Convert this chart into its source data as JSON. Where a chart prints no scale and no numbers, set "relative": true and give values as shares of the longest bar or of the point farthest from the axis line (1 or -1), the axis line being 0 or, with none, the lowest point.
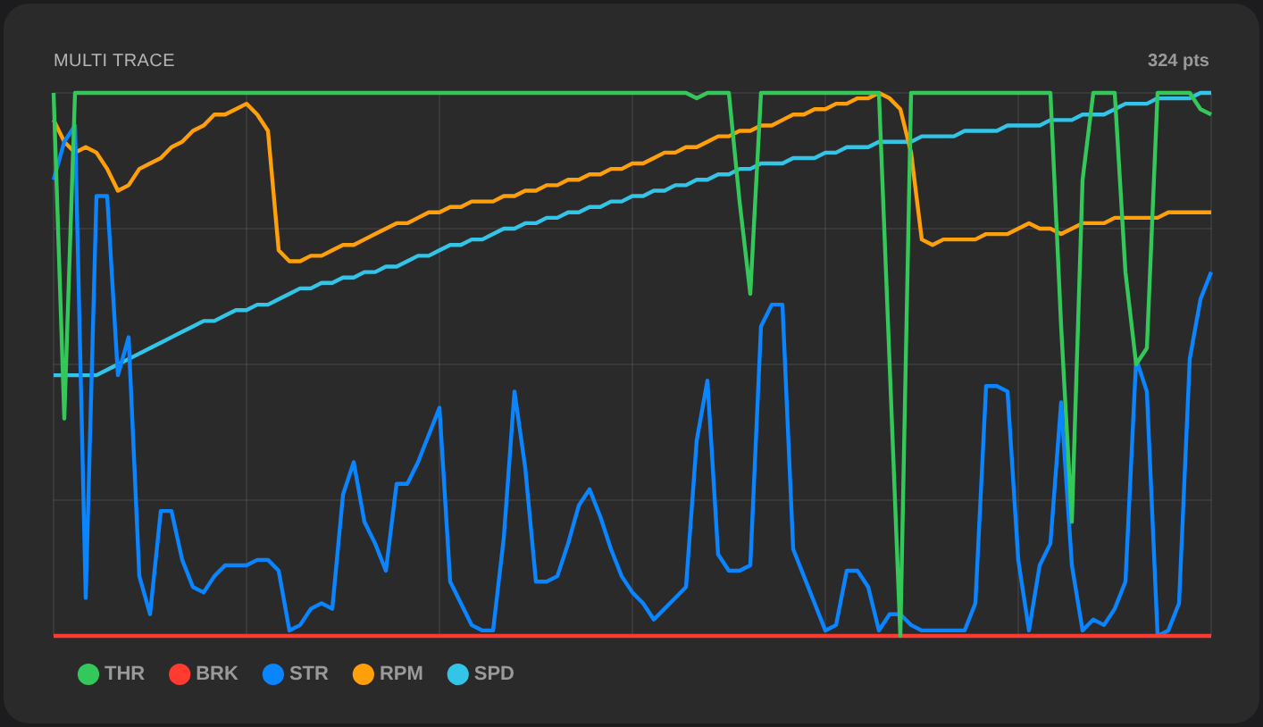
{
  "chart_data": {
    "type": "line",
    "title": "MULTI TRACE",
    "annotations": [
      "324 pts"
    ],
    "relative": true,
    "grid": true,
    "legend": "bottom left",
    "marker": "none",
    "line_style": "solid",
    "categories": [
      null,
      null,
      null,
      null,
      null,
      null,
      null,
      null,
      null,
      null,
      null,
      null,
      null,
      null,
      null,
      null,
      null,
      null,
      null,
      null,
      null,
      null,
      null,
      null,
      null,
      null,
      null,
      null,
      null,
      null,
      null,
      null,
      null,
      null,
      null,
      null,
      null,
      null,
      null,
      null,
      null,
      null,
      null,
      null,
      null,
      null,
      null,
      null,
      null,
      null,
      null,
      null,
      null,
      null,
      null,
      null,
      null,
      null,
      null,
      null,
      null,
      null,
      null,
      null,
      null,
      null,
      null,
      null,
      null,
      null,
      null,
      null,
      null,
      null,
      null,
      null,
      null,
      null,
      null,
      null,
      null,
      null,
      null,
      null,
      null,
      null,
      null,
      null,
      null,
      null,
      null,
      null,
      null,
      null,
      null,
      null,
      null,
      null,
      null,
      null,
      null,
      null,
      null,
      null,
      null,
      null,
      null,
      null,
      null
    ],
    "series": [
      {
        "name": "THR",
        "color": "#34c759",
        "values": [
          1,
          0.4,
          1,
          1,
          1,
          1,
          1,
          1,
          1,
          1,
          1,
          1,
          1,
          1,
          1,
          1,
          1,
          1,
          1,
          1,
          1,
          1,
          1,
          1,
          1,
          1,
          1,
          1,
          1,
          1,
          1,
          1,
          1,
          1,
          1,
          1,
          1,
          1,
          1,
          1,
          1,
          1,
          1,
          1,
          1,
          1,
          1,
          1,
          1,
          1,
          1,
          1,
          1,
          1,
          1,
          1,
          1,
          1,
          1,
          1,
          0.99,
          1,
          1,
          1,
          0.8,
          0.63,
          1,
          1,
          1,
          1,
          1,
          1,
          1,
          1,
          1,
          1,
          1,
          1,
          0.5,
          0,
          1,
          1,
          1,
          1,
          1,
          1,
          1,
          1,
          1,
          1,
          1,
          1,
          1,
          1,
          0.57,
          0.21,
          0.84,
          1,
          1,
          1,
          0.67,
          0.5,
          0.53,
          1,
          1,
          1,
          1,
          0.97,
          0.96
        ]
      },
      {
        "name": "BRK",
        "color": "#ff3b30",
        "values": [
          0,
          0,
          0,
          0,
          0,
          0,
          0,
          0,
          0,
          0,
          0,
          0,
          0,
          0,
          0,
          0,
          0,
          0,
          0,
          0,
          0,
          0,
          0,
          0,
          0,
          0,
          0,
          0,
          0,
          0,
          0,
          0,
          0,
          0,
          0,
          0,
          0,
          0,
          0,
          0,
          0,
          0,
          0,
          0,
          0,
          0,
          0,
          0,
          0,
          0,
          0,
          0,
          0,
          0,
          0,
          0,
          0,
          0,
          0,
          0,
          0,
          0,
          0,
          0,
          0,
          0,
          0,
          0,
          0,
          0,
          0,
          0,
          0,
          0,
          0,
          0,
          0,
          0,
          0,
          0,
          0,
          0,
          0,
          0,
          0,
          0,
          0,
          0,
          0,
          0,
          0,
          0,
          0,
          0,
          0,
          0,
          0,
          0,
          0,
          0,
          0,
          0,
          0,
          0,
          0,
          0,
          0,
          0,
          0
        ]
      },
      {
        "name": "STR",
        "color": "#0a84ff",
        "values": [
          0.84,
          0.91,
          0.94,
          0.07,
          0.81,
          0.81,
          0.48,
          0.55,
          0.11,
          0.04,
          0.23,
          0.23,
          0.14,
          0.09,
          0.08,
          0.11,
          0.13,
          0.13,
          0.13,
          0.14,
          0.14,
          0.12,
          0.01,
          0.02,
          0.05,
          0.06,
          0.05,
          0.26,
          0.32,
          0.21,
          0.17,
          0.12,
          0.28,
          0.28,
          0.32,
          0.37,
          0.42,
          0.1,
          0.06,
          0.02,
          0.01,
          0.01,
          0.18,
          0.45,
          0.31,
          0.1,
          0.1,
          0.11,
          0.17,
          0.24,
          0.27,
          0.22,
          0.16,
          0.11,
          0.08,
          0.06,
          0.03,
          0.05,
          0.07,
          0.09,
          0.36,
          0.47,
          0.15,
          0.12,
          0.12,
          0.13,
          0.57,
          0.61,
          0.61,
          0.16,
          0.11,
          0.06,
          0.01,
          0.02,
          0.12,
          0.12,
          0.09,
          0.01,
          0.04,
          0.04,
          0.02,
          0.01,
          0.01,
          0.01,
          0.01,
          0.01,
          0.06,
          0.46,
          0.46,
          0.45,
          0.14,
          0.01,
          0.13,
          0.17,
          0.43,
          0.13,
          0.01,
          0.03,
          0.02,
          0.05,
          0.1,
          0.51,
          0.45,
          0,
          0.01,
          0.06,
          0.51,
          0.62,
          0.67
        ]
      },
      {
        "name": "RPM",
        "color": "#ff9f0a",
        "values": [
          0.95,
          0.91,
          0.89,
          0.9,
          0.89,
          0.86,
          0.82,
          0.83,
          0.86,
          0.87,
          0.88,
          0.9,
          0.91,
          0.93,
          0.94,
          0.96,
          0.96,
          0.97,
          0.98,
          0.96,
          0.93,
          0.71,
          0.69,
          0.69,
          0.7,
          0.7,
          0.71,
          0.72,
          0.72,
          0.73,
          0.74,
          0.75,
          0.76,
          0.76,
          0.77,
          0.78,
          0.78,
          0.79,
          0.79,
          0.8,
          0.8,
          0.8,
          0.81,
          0.81,
          0.82,
          0.82,
          0.83,
          0.83,
          0.84,
          0.84,
          0.85,
          0.85,
          0.86,
          0.86,
          0.87,
          0.87,
          0.88,
          0.89,
          0.89,
          0.9,
          0.9,
          0.91,
          0.92,
          0.92,
          0.93,
          0.93,
          0.94,
          0.94,
          0.95,
          0.96,
          0.96,
          0.97,
          0.97,
          0.98,
          0.98,
          0.99,
          0.99,
          1,
          0.99,
          0.97,
          0.89,
          0.73,
          0.72,
          0.73,
          0.73,
          0.73,
          0.73,
          0.74,
          0.74,
          0.74,
          0.75,
          0.76,
          0.75,
          0.75,
          0.74,
          0.75,
          0.76,
          0.76,
          0.76,
          0.77,
          0.77,
          0.77,
          0.77,
          0.77,
          0.78,
          0.78,
          0.78,
          0.78,
          0.78
        ]
      },
      {
        "name": "SPD",
        "color": "#32c5e8",
        "values": [
          0.48,
          0.48,
          0.48,
          0.48,
          0.48,
          0.49,
          0.5,
          0.51,
          0.52,
          0.53,
          0.54,
          0.55,
          0.56,
          0.57,
          0.58,
          0.58,
          0.59,
          0.6,
          0.6,
          0.61,
          0.61,
          0.62,
          0.63,
          0.64,
          0.64,
          0.65,
          0.65,
          0.66,
          0.66,
          0.67,
          0.67,
          0.68,
          0.68,
          0.69,
          0.7,
          0.7,
          0.71,
          0.72,
          0.72,
          0.73,
          0.73,
          0.74,
          0.75,
          0.75,
          0.76,
          0.76,
          0.77,
          0.77,
          0.78,
          0.78,
          0.79,
          0.79,
          0.8,
          0.8,
          0.81,
          0.81,
          0.82,
          0.82,
          0.83,
          0.83,
          0.84,
          0.84,
          0.85,
          0.85,
          0.86,
          0.86,
          0.87,
          0.87,
          0.87,
          0.88,
          0.88,
          0.88,
          0.89,
          0.89,
          0.9,
          0.9,
          0.9,
          0.91,
          0.91,
          0.91,
          0.91,
          0.92,
          0.92,
          0.92,
          0.92,
          0.93,
          0.93,
          0.93,
          0.93,
          0.94,
          0.94,
          0.94,
          0.94,
          0.95,
          0.95,
          0.95,
          0.96,
          0.96,
          0.96,
          0.97,
          0.98,
          0.98,
          0.98,
          0.99,
          0.99,
          0.99,
          0.99,
          1,
          1
        ]
      }
    ]
  }
}
